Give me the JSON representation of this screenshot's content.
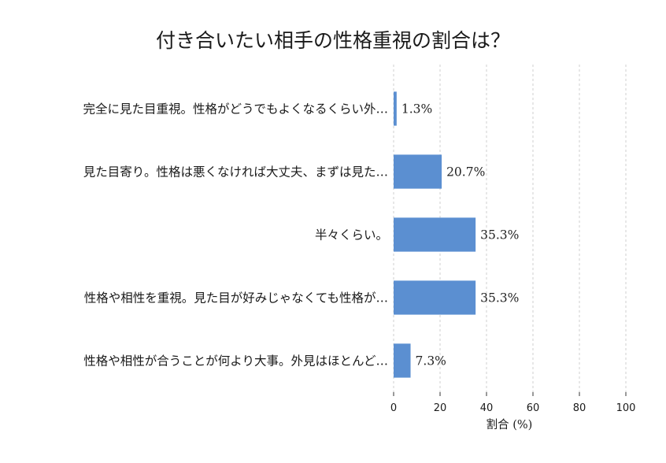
{
  "chart_data": {
    "type": "bar",
    "orientation": "horizontal",
    "title": "付き合いたい相手の性格重視の割合は？",
    "xlabel": "割合 (%)",
    "ylabel": "",
    "xlim": [
      0,
      100
    ],
    "xticks": [
      "0",
      "20",
      "40",
      "60",
      "80",
      "100"
    ],
    "grid": true,
    "categories": [
      "完全に見た目重視。性格がどうでもよくなるくらい外…",
      "見た目寄り。性格は悪くなければ大丈夫、まずは見た…",
      "半々くらい。",
      "性格や相性を重視。見た目が好みじゃなくても性格が…",
      "性格や相性が合うことが何より大事。外見はほとんど…"
    ],
    "values": [
      1.3,
      20.7,
      35.3,
      35.3,
      7.3
    ],
    "value_labels": [
      "1.3%",
      "20.7%",
      "35.3%",
      "35.3%",
      "7.3%"
    ],
    "bar_color": "#5b8fd1"
  }
}
